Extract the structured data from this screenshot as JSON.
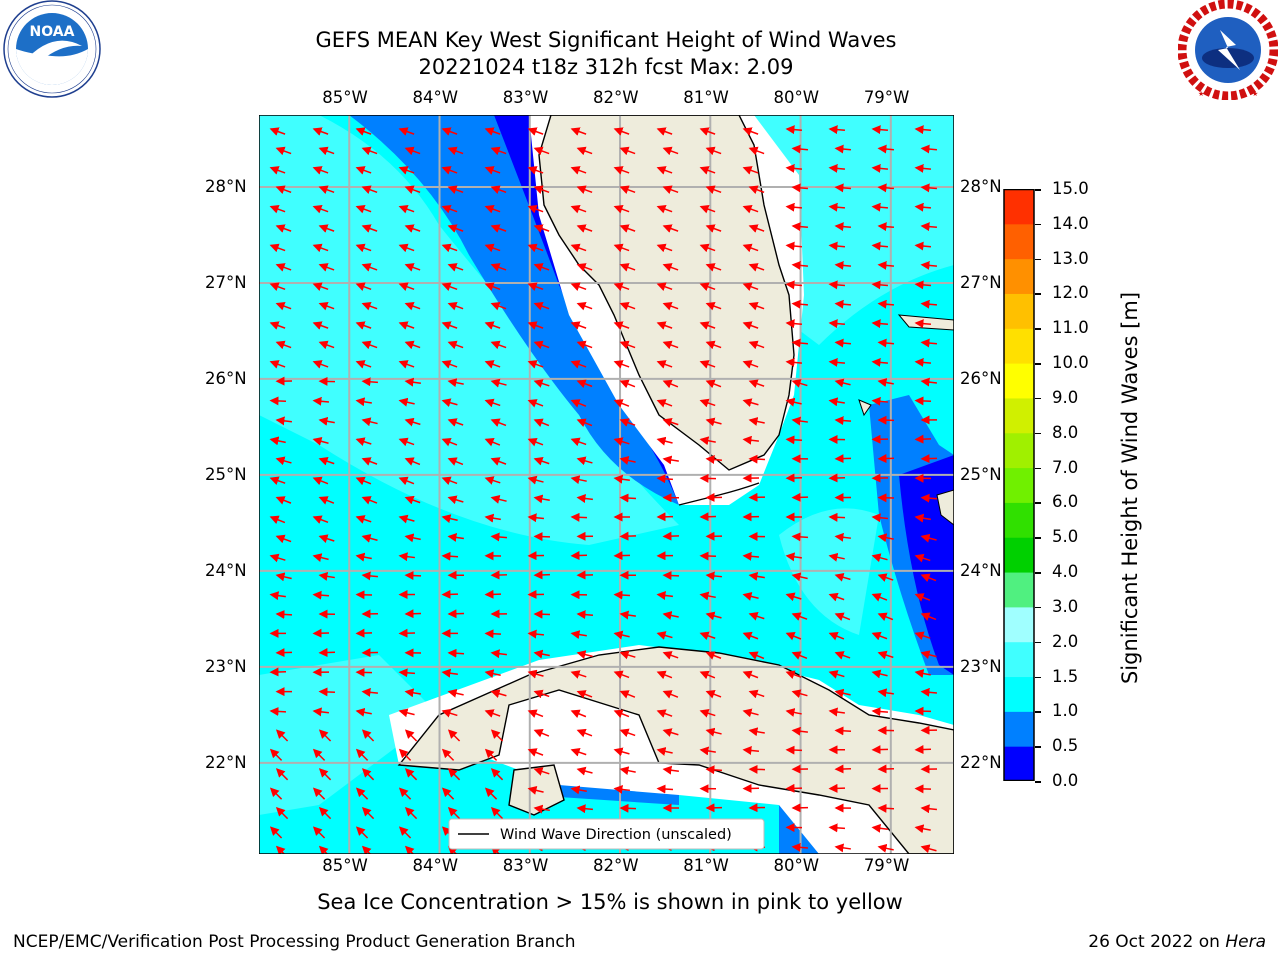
{
  "header": {
    "title_line1": "GEFS MEAN Key West Significant Height of Wind Waves",
    "title_line2": "20221024 t18z 312h fcst   Max: 2.09"
  },
  "logos": {
    "left": {
      "name": "NOAA",
      "ring_text": "NATIONAL OCEANIC AND ATMOSPHERIC ADMINISTRATION · U.S. DEPARTMENT OF COMMERCE"
    },
    "right": {
      "name": "NATIONAL WEATHER SERVICE"
    }
  },
  "map": {
    "lon_labels": [
      "85°W",
      "84°W",
      "83°W",
      "82°W",
      "81°W",
      "80°W",
      "79°W"
    ],
    "lat_labels": [
      "28°N",
      "27°N",
      "26°N",
      "25°N",
      "24°N",
      "23°N",
      "22°N"
    ],
    "lon_range": [
      -86,
      -78.3
    ],
    "lat_range": [
      21.05,
      28.75
    ],
    "land_color": "#eeecdc",
    "arrow_color": "#ff0000",
    "legend_text": "Wind Wave Direction (unscaled)"
  },
  "colorbar": {
    "label": "Significant Height of Wind Waves [m]",
    "ticks": [
      "15.0",
      "14.0",
      "13.0",
      "12.0",
      "11.0",
      "10.0",
      "9.0",
      "8.0",
      "7.0",
      "6.0",
      "5.0",
      "4.0",
      "3.0",
      "2.0",
      "1.5",
      "1.0",
      "0.5",
      "0.0"
    ],
    "colors": [
      "#0000ff",
      "#0080ff",
      "#00ffff",
      "#40ffff",
      "#a0ffff",
      "#50f080",
      "#00d000",
      "#30e000",
      "#70f000",
      "#a0f000",
      "#d0f000",
      "#ffff00",
      "#ffe000",
      "#ffc000",
      "#ff9000",
      "#ff6000",
      "#ff3000",
      "#ff0000"
    ]
  },
  "caption": "Sea Ice Concentration > 15% is shown in pink to yellow",
  "footer": {
    "left": "NCEP/EMC/Verification Post Processing Product Generation Branch",
    "date": "26 Oct 2022 on",
    "host": "Hera"
  }
}
